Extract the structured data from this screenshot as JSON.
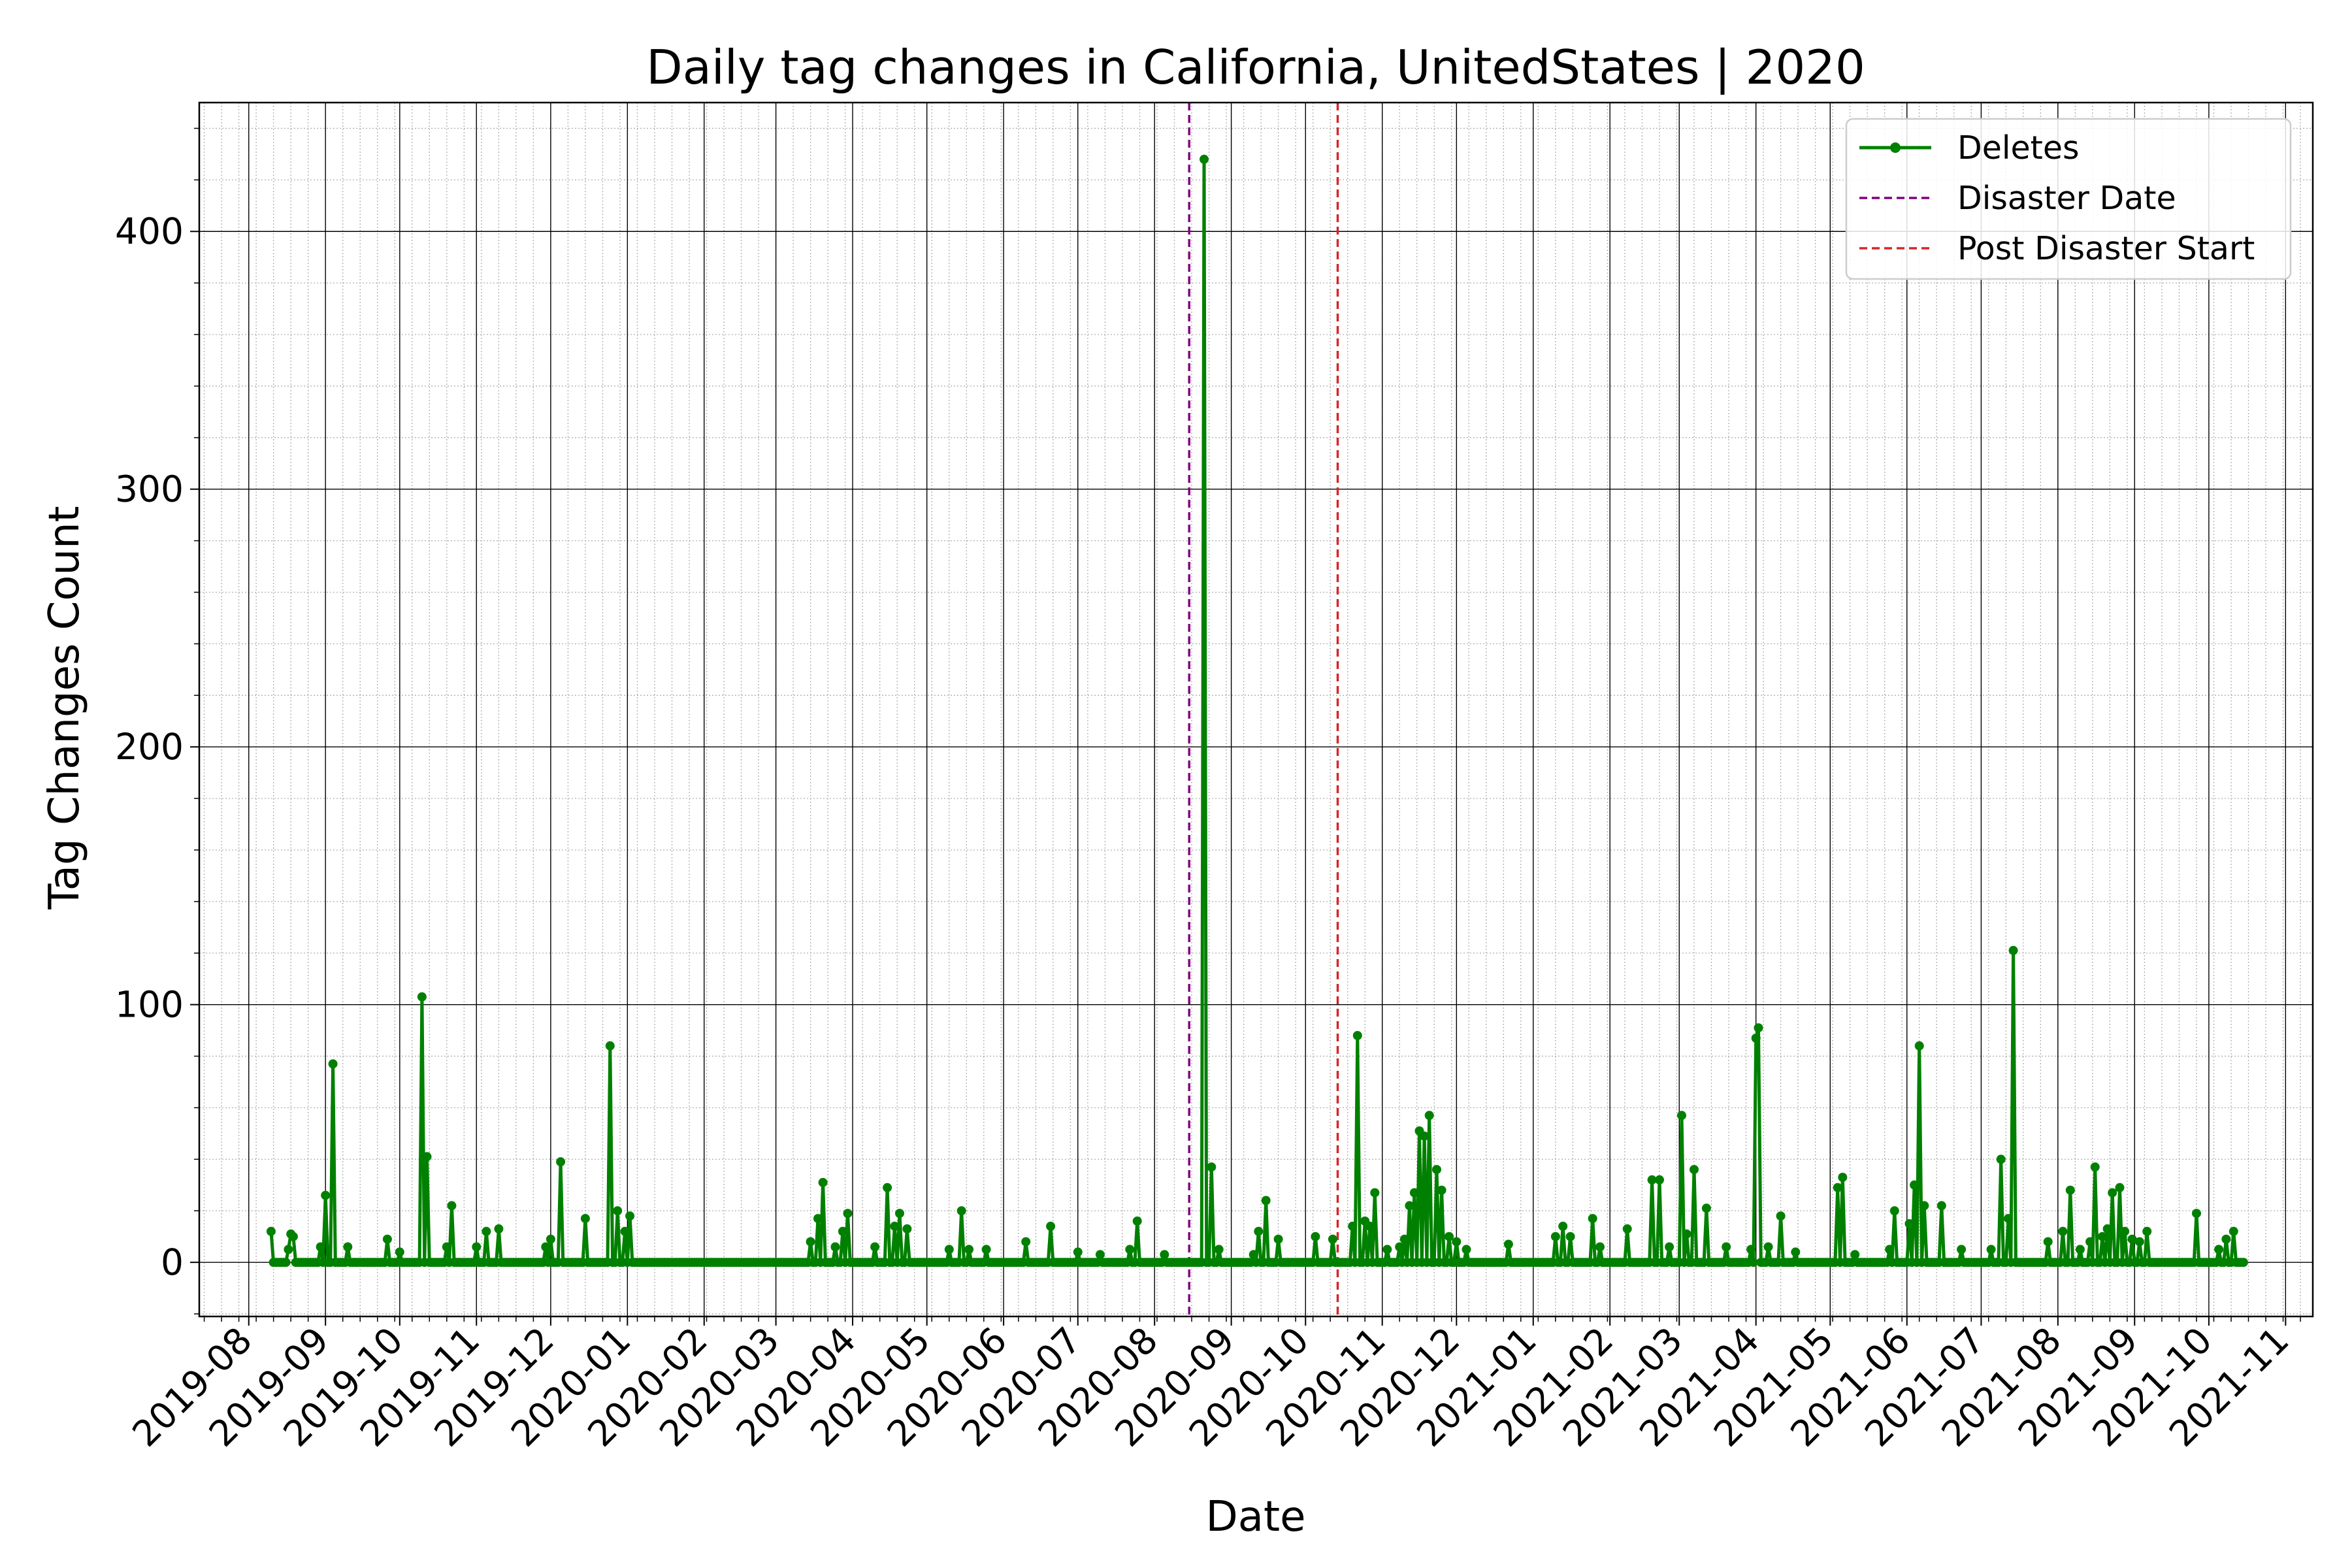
{
  "chart_data": {
    "type": "line",
    "title": "Daily tag changes in California, UnitedStates | 2020",
    "xlabel": "Date",
    "ylabel": "Tag Changes Count",
    "xlim": [
      "2019-07-12",
      "2021-11-12"
    ],
    "ylim": [
      -21,
      450
    ],
    "grid": true,
    "legend_position": "top-right",
    "x_ticks": [
      "2019-08",
      "2019-09",
      "2019-10",
      "2019-11",
      "2019-12",
      "2020-01",
      "2020-02",
      "2020-03",
      "2020-04",
      "2020-05",
      "2020-06",
      "2020-07",
      "2020-08",
      "2020-09",
      "2020-10",
      "2020-11",
      "2020-12",
      "2021-01",
      "2021-02",
      "2021-03",
      "2021-04",
      "2021-05",
      "2021-06",
      "2021-07",
      "2021-08",
      "2021-09",
      "2021-10",
      "2021-11"
    ],
    "y_ticks": [
      0,
      100,
      200,
      300,
      400
    ],
    "series": [
      {
        "name": "Deletes",
        "color": "#008000",
        "marker": "circle",
        "range": [
          "2019-08-10",
          "2021-10-15"
        ],
        "baseline": 0,
        "points": [
          [
            "2019-08-10",
            12
          ],
          [
            "2019-08-17",
            5
          ],
          [
            "2019-08-18",
            11
          ],
          [
            "2019-08-19",
            10
          ],
          [
            "2019-08-30",
            6
          ],
          [
            "2019-09-01",
            26
          ],
          [
            "2019-09-04",
            77
          ],
          [
            "2019-09-10",
            6
          ],
          [
            "2019-09-26",
            9
          ],
          [
            "2019-10-01",
            4
          ],
          [
            "2019-10-10",
            103
          ],
          [
            "2019-10-12",
            41
          ],
          [
            "2019-10-20",
            6
          ],
          [
            "2019-10-22",
            22
          ],
          [
            "2019-11-01",
            6
          ],
          [
            "2019-11-05",
            12
          ],
          [
            "2019-11-10",
            13
          ],
          [
            "2019-11-29",
            6
          ],
          [
            "2019-12-01",
            9
          ],
          [
            "2019-12-05",
            39
          ],
          [
            "2019-12-15",
            17
          ],
          [
            "2019-12-25",
            84
          ],
          [
            "2019-12-28",
            20
          ],
          [
            "2019-12-31",
            12
          ],
          [
            "2020-01-02",
            18
          ],
          [
            "2020-03-15",
            8
          ],
          [
            "2020-03-18",
            17
          ],
          [
            "2020-03-20",
            31
          ],
          [
            "2020-03-25",
            6
          ],
          [
            "2020-03-28",
            12
          ],
          [
            "2020-03-30",
            19
          ],
          [
            "2020-04-10",
            6
          ],
          [
            "2020-04-15",
            29
          ],
          [
            "2020-04-18",
            14
          ],
          [
            "2020-04-20",
            19
          ],
          [
            "2020-04-23",
            13
          ],
          [
            "2020-05-10",
            5
          ],
          [
            "2020-05-15",
            20
          ],
          [
            "2020-05-18",
            5
          ],
          [
            "2020-05-25",
            5
          ],
          [
            "2020-06-10",
            8
          ],
          [
            "2020-06-20",
            14
          ],
          [
            "2020-07-01",
            4
          ],
          [
            "2020-07-10",
            3
          ],
          [
            "2020-07-22",
            5
          ],
          [
            "2020-07-25",
            16
          ],
          [
            "2020-08-05",
            3
          ],
          [
            "2020-08-21",
            428
          ],
          [
            "2020-08-24",
            37
          ],
          [
            "2020-08-27",
            5
          ],
          [
            "2020-09-10",
            3
          ],
          [
            "2020-09-12",
            12
          ],
          [
            "2020-09-15",
            24
          ],
          [
            "2020-09-20",
            9
          ],
          [
            "2020-10-05",
            10
          ],
          [
            "2020-10-12",
            9
          ],
          [
            "2020-10-20",
            14
          ],
          [
            "2020-10-22",
            88
          ],
          [
            "2020-10-25",
            16
          ],
          [
            "2020-10-27",
            14
          ],
          [
            "2020-10-29",
            27
          ],
          [
            "2020-11-03",
            5
          ],
          [
            "2020-11-08",
            6
          ],
          [
            "2020-11-10",
            9
          ],
          [
            "2020-11-12",
            22
          ],
          [
            "2020-11-14",
            27
          ],
          [
            "2020-11-16",
            51
          ],
          [
            "2020-11-18",
            49
          ],
          [
            "2020-11-20",
            57
          ],
          [
            "2020-11-23",
            36
          ],
          [
            "2020-11-25",
            28
          ],
          [
            "2020-11-28",
            10
          ],
          [
            "2020-12-01",
            8
          ],
          [
            "2020-12-05",
            5
          ],
          [
            "2020-12-22",
            7
          ],
          [
            "2021-01-10",
            10
          ],
          [
            "2021-01-13",
            14
          ],
          [
            "2021-01-16",
            10
          ],
          [
            "2021-01-25",
            17
          ],
          [
            "2021-01-28",
            6
          ],
          [
            "2021-02-08",
            13
          ],
          [
            "2021-02-18",
            32
          ],
          [
            "2021-02-21",
            32
          ],
          [
            "2021-02-25",
            6
          ],
          [
            "2021-03-02",
            57
          ],
          [
            "2021-03-04",
            11
          ],
          [
            "2021-03-07",
            36
          ],
          [
            "2021-03-12",
            21
          ],
          [
            "2021-03-20",
            6
          ],
          [
            "2021-03-30",
            5
          ],
          [
            "2021-04-01",
            87
          ],
          [
            "2021-04-02",
            91
          ],
          [
            "2021-04-06",
            6
          ],
          [
            "2021-04-11",
            18
          ],
          [
            "2021-04-17",
            4
          ],
          [
            "2021-05-04",
            29
          ],
          [
            "2021-05-06",
            33
          ],
          [
            "2021-05-11",
            3
          ],
          [
            "2021-05-25",
            5
          ],
          [
            "2021-05-27",
            20
          ],
          [
            "2021-06-02",
            15
          ],
          [
            "2021-06-04",
            30
          ],
          [
            "2021-06-06",
            84
          ],
          [
            "2021-06-08",
            22
          ],
          [
            "2021-06-15",
            22
          ],
          [
            "2021-06-23",
            5
          ],
          [
            "2021-07-05",
            5
          ],
          [
            "2021-07-09",
            40
          ],
          [
            "2021-07-12",
            17
          ],
          [
            "2021-07-14",
            121
          ],
          [
            "2021-07-28",
            8
          ],
          [
            "2021-08-03",
            12
          ],
          [
            "2021-08-06",
            28
          ],
          [
            "2021-08-10",
            5
          ],
          [
            "2021-08-14",
            8
          ],
          [
            "2021-08-16",
            37
          ],
          [
            "2021-08-19",
            10
          ],
          [
            "2021-08-21",
            13
          ],
          [
            "2021-08-23",
            27
          ],
          [
            "2021-08-26",
            29
          ],
          [
            "2021-08-28",
            12
          ],
          [
            "2021-08-31",
            9
          ],
          [
            "2021-09-03",
            8
          ],
          [
            "2021-09-06",
            12
          ],
          [
            "2021-09-26",
            19
          ],
          [
            "2021-10-05",
            5
          ],
          [
            "2021-10-08",
            9
          ],
          [
            "2021-10-11",
            12
          ]
        ]
      }
    ],
    "vlines": [
      {
        "name": "Disaster Date",
        "date": "2020-08-15",
        "color": "#800080",
        "style": "dashed"
      },
      {
        "name": "Post Disaster Start",
        "date": "2020-10-14",
        "color": "#d62728",
        "style": "dashed"
      }
    ]
  }
}
